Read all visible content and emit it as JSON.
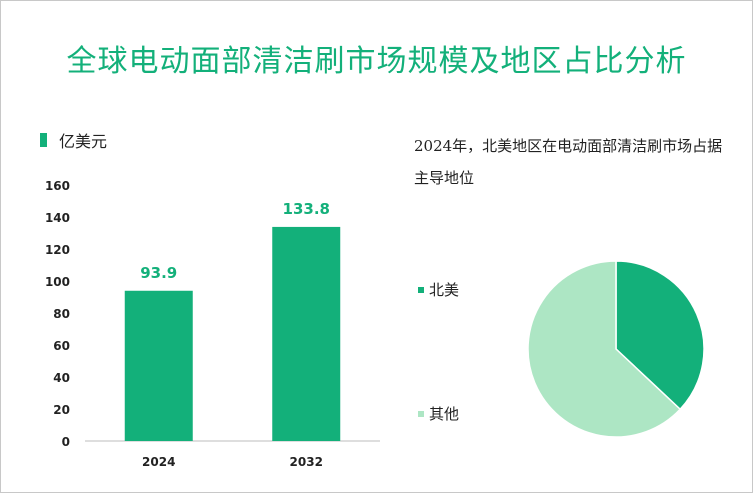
{
  "title": "全球电动面部清洁刷市场规模及地区占比分析",
  "unit_legend": "亿美元",
  "pie_note": "2024年，北美地区在电动面部清洁刷市场占据主导地位",
  "colors": {
    "primary": "#13b07a",
    "light": "#ade6c4",
    "axis": "#bdbdbd",
    "title": "#13b07a"
  },
  "chart_data": [
    {
      "type": "bar",
      "title": "",
      "categories": [
        "2024",
        "2032"
      ],
      "values": [
        93.9,
        133.8
      ],
      "value_labels": [
        "93.9",
        "133.8"
      ],
      "yticks": [
        0,
        20,
        40,
        60,
        80,
        100,
        120,
        140,
        160
      ],
      "ylim": [
        0,
        160
      ],
      "ylabel": "亿美元",
      "xlabel": "",
      "grid": false
    },
    {
      "type": "pie",
      "labels": [
        "北美",
        "其他"
      ],
      "values": [
        37,
        63
      ],
      "colors": [
        "#13b07a",
        "#ade6c4"
      ],
      "legend": "left"
    }
  ]
}
